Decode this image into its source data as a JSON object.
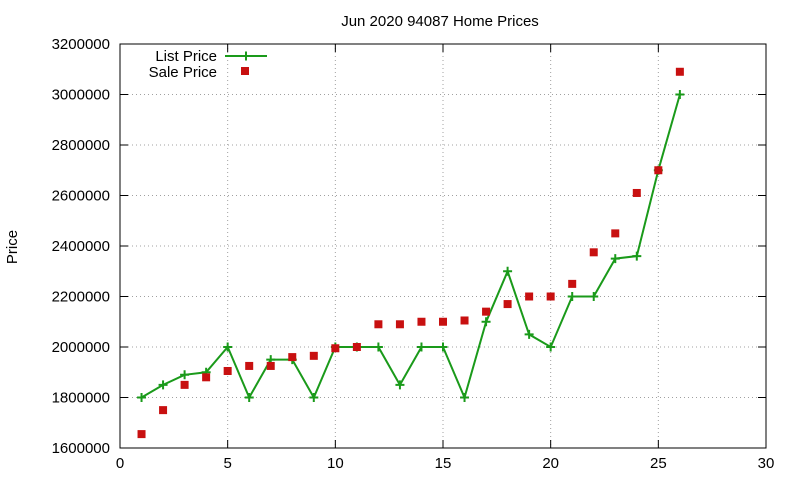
{
  "chart_data": {
    "type": "line",
    "title": "Jun 2020 94087 Home Prices",
    "xlabel": "",
    "ylabel": "Price",
    "xlim": [
      0,
      30
    ],
    "ylim": [
      1600000,
      3200000
    ],
    "xticks": [
      0,
      5,
      10,
      15,
      20,
      25,
      30
    ],
    "yticks": [
      1600000,
      1800000,
      2000000,
      2200000,
      2400000,
      2600000,
      2800000,
      3000000,
      3200000
    ],
    "grid": true,
    "legend_position": "top-left",
    "series": [
      {
        "name": "List Price",
        "style": "line-plus",
        "color": "#1a9a1a",
        "x": [
          1,
          2,
          3,
          4,
          5,
          6,
          7,
          8,
          9,
          10,
          11,
          12,
          13,
          14,
          15,
          16,
          17,
          18,
          19,
          20,
          21,
          22,
          23,
          24,
          25,
          26
        ],
        "y": [
          1800000,
          1850000,
          1890000,
          1900000,
          2000000,
          1800000,
          1950000,
          1950000,
          1800000,
          2000000,
          2000000,
          2000000,
          1850000,
          2000000,
          2000000,
          1800000,
          2100000,
          2300000,
          2050000,
          2000000,
          2200000,
          2200000,
          2350000,
          2360000,
          2700000,
          3000000
        ]
      },
      {
        "name": "Sale Price",
        "style": "square",
        "color": "#c81010",
        "x": [
          1,
          2,
          3,
          4,
          5,
          6,
          7,
          8,
          9,
          10,
          11,
          12,
          13,
          14,
          15,
          16,
          17,
          18,
          19,
          20,
          21,
          22,
          23,
          24,
          25,
          26
        ],
        "y": [
          1655000,
          1750000,
          1850000,
          1880000,
          1905000,
          1925000,
          1925000,
          1960000,
          1965000,
          1995000,
          2000000,
          2090000,
          2090000,
          2100000,
          2100000,
          2105000,
          2140000,
          2170000,
          2200000,
          2200000,
          2250000,
          2375000,
          2450000,
          2610000,
          2700000,
          3090000
        ]
      }
    ]
  }
}
